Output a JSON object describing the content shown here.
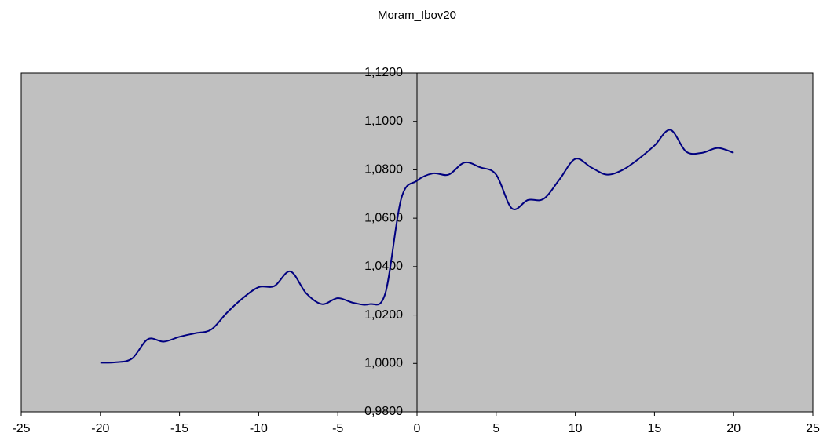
{
  "chart_data": {
    "type": "line",
    "title": "Moram_Ibov20",
    "x": [
      -20,
      -19,
      -18,
      -17,
      -16,
      -15,
      -14,
      -13,
      -12,
      -11,
      -10,
      -9,
      -8,
      -7,
      -6,
      -5,
      -4,
      -3,
      -2,
      -1,
      0,
      1,
      2,
      3,
      4,
      5,
      6,
      7,
      8,
      9,
      10,
      11,
      12,
      13,
      14,
      15,
      16,
      17,
      18,
      19,
      20
    ],
    "series": [
      {
        "name": "Moram_Ibov20",
        "color": "#000080",
        "values": [
          1.0003,
          1.0005,
          1.002,
          1.01,
          1.009,
          1.011,
          1.0125,
          1.014,
          1.021,
          1.027,
          1.0315,
          1.032,
          1.038,
          1.029,
          1.0245,
          1.027,
          1.025,
          1.0245,
          1.029,
          1.068,
          1.0755,
          1.0785,
          1.078,
          1.083,
          1.081,
          1.078,
          1.064,
          1.0675,
          1.068,
          1.076,
          1.0845,
          1.081,
          1.078,
          1.08,
          1.0845,
          1.09,
          1.0965,
          1.0875,
          1.087,
          1.089,
          1.087
        ]
      }
    ],
    "xlim": [
      -25,
      25
    ],
    "xticks": [
      -25,
      -20,
      -15,
      -10,
      -5,
      0,
      5,
      10,
      15,
      20,
      25
    ],
    "ylim": [
      0.98,
      1.12
    ],
    "yticks": [
      {
        "value": 0.98,
        "label": "0,9800"
      },
      {
        "value": 1.0,
        "label": "1,0000"
      },
      {
        "value": 1.02,
        "label": "1,0200"
      },
      {
        "value": 1.04,
        "label": "1,0400"
      },
      {
        "value": 1.06,
        "label": "1,0600"
      },
      {
        "value": 1.08,
        "label": "1,0800"
      },
      {
        "value": 1.1,
        "label": "1,1000"
      },
      {
        "value": 1.12,
        "label": "1,1200"
      }
    ],
    "plot_background": "#c0c0c0"
  }
}
